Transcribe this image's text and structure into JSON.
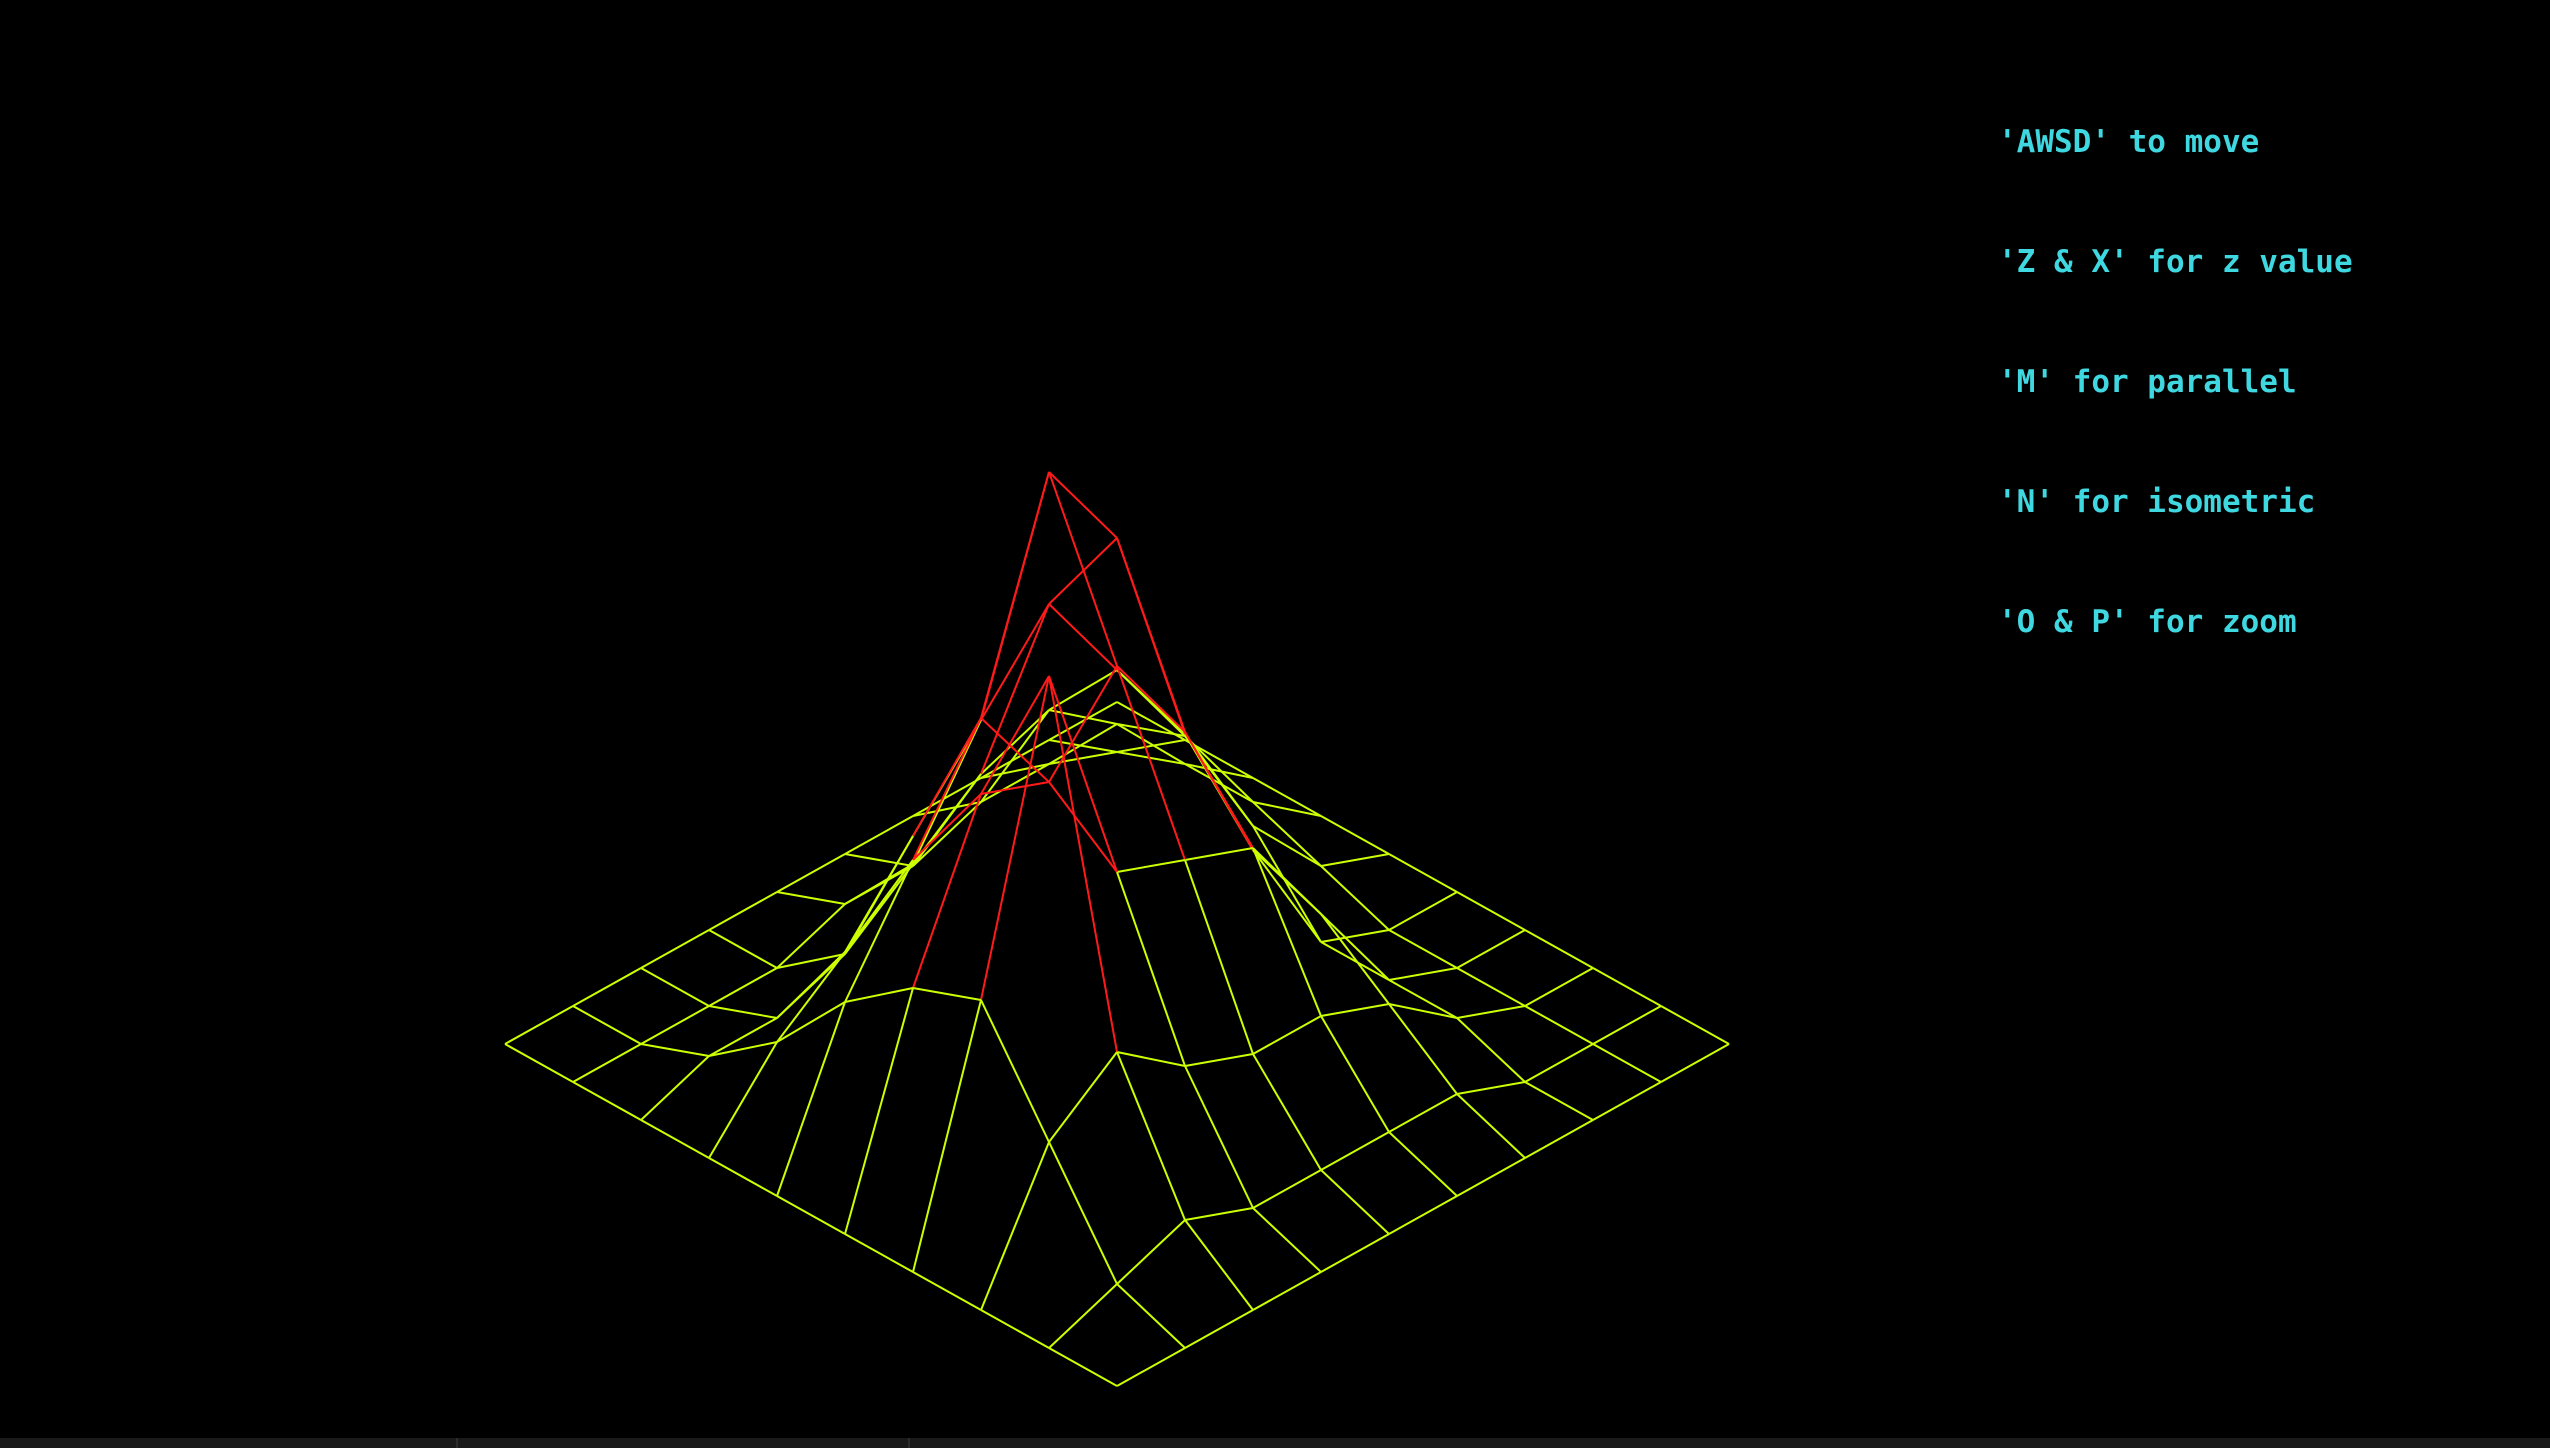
{
  "window": {
    "background": "#000000",
    "mesh_color": "#ccff00",
    "peak_color": "#ff1a1a",
    "text_color": "#3fd7e0"
  },
  "instructions": [
    "'AWSD' to move",
    "'Z & X' for z value",
    "'M' for parallel",
    "'N' for isometric",
    "'O & P' for zoom"
  ],
  "grid": {
    "rows": 10,
    "cols": 10,
    "heights": [
      [
        0,
        0,
        0,
        0,
        0,
        0,
        0,
        0,
        0,
        0
      ],
      [
        0,
        1,
        2,
        2,
        1,
        0,
        0,
        0,
        0,
        0
      ],
      [
        0,
        2,
        5,
        6,
        4,
        1,
        1,
        1,
        0,
        0
      ],
      [
        0,
        2,
        7,
        10,
        9,
        6,
        5,
        3,
        1,
        0
      ],
      [
        0,
        1,
        6,
        14,
        18,
        12,
        9,
        4,
        1,
        0
      ],
      [
        0,
        1,
        4,
        11,
        22,
        16,
        10,
        4,
        1,
        0
      ],
      [
        0,
        0,
        2,
        8,
        14,
        13,
        11,
        5,
        1,
        0
      ],
      [
        0,
        0,
        1,
        5,
        10,
        14,
        20,
        7,
        2,
        0
      ],
      [
        0,
        0,
        1,
        3,
        6,
        8,
        9,
        5,
        1,
        0
      ],
      [
        0,
        0,
        0,
        0,
        0,
        0,
        0,
        0,
        0,
        0
      ]
    ],
    "peak_threshold": 12
  }
}
